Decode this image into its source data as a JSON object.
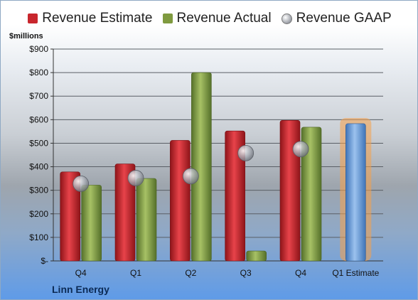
{
  "chart_data": {
    "type": "bar",
    "title": "",
    "unit_label": "$millions",
    "company": "Linn Energy",
    "categories": [
      "Q4",
      "Q1",
      "Q2",
      "Q3",
      "Q4",
      "Q1 Estimate"
    ],
    "ylim": [
      0,
      900
    ],
    "ytick_labels": [
      "$-",
      "$100",
      "$200",
      "$300",
      "$400",
      "$500",
      "$600",
      "$700",
      "$800",
      "$900"
    ],
    "series": [
      {
        "name": "Revenue Estimate",
        "kind": "bar",
        "color": "#c8262d",
        "values": [
          378,
          412,
          512,
          552,
          597,
          null
        ]
      },
      {
        "name": "Revenue Actual",
        "kind": "bar",
        "color": "#7f9a3f",
        "values": [
          322,
          350,
          800,
          42,
          568,
          null
        ]
      },
      {
        "name": "Revenue GAAP",
        "kind": "marker",
        "color": "#a9adb5",
        "values": [
          328,
          352,
          360,
          458,
          475,
          null
        ]
      },
      {
        "name": "Q1 Estimate",
        "kind": "highlight-bar",
        "color": "#6ea0d8",
        "values": [
          null,
          null,
          null,
          null,
          null,
          583
        ]
      }
    ],
    "grid": true,
    "legend_position": "top"
  }
}
